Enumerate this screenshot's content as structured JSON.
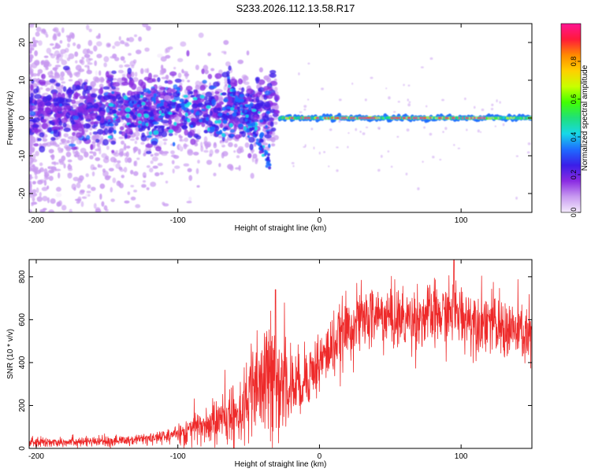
{
  "title": "S233.2026.112.13.58.R17",
  "colors": {
    "snr_line": "#ee2a2a",
    "axis": "#000000",
    "colorbar_stops": [
      "#f4eafc",
      "#c89af0",
      "#8a2be2",
      "#3a1ee8",
      "#1e6bff",
      "#17d8e8",
      "#1fe07a",
      "#42ff00",
      "#c8ff00",
      "#ffd000",
      "#ff8a00",
      "#ff1a3a",
      "#ff1493"
    ]
  },
  "chart_data": [
    {
      "type": "heatmap",
      "name": "spectrogram",
      "xlabel": "Height of straight line (km)",
      "ylabel": "Frequency (Hz)",
      "xlim": [
        -205,
        150
      ],
      "ylim": [
        -25,
        25
      ],
      "xticks": [
        -200,
        -100,
        0,
        100
      ],
      "xtick_labels": [
        "-200",
        "-100",
        "0",
        "100"
      ],
      "yticks": [
        -20,
        -10,
        0,
        10,
        20
      ],
      "ytick_labels": [
        "-20",
        "-10",
        "0",
        "10",
        "20"
      ],
      "colorbar": {
        "label": "Normalized spectral amplitude",
        "range": [
          0,
          1
        ],
        "ticks": [
          0.0,
          0.2,
          0.4,
          0.6,
          0.8
        ],
        "tick_labels": [
          "0.0",
          "0.2",
          "0.4",
          "0.6",
          "0.8"
        ]
      },
      "description_regions": [
        {
          "x_range": [
            -205,
            -35
          ],
          "freq_spread": 10,
          "intensity": 0.25
        },
        {
          "x_range": [
            -150,
            -35
          ],
          "freq_spread": 5,
          "intensity": 0.45
        },
        {
          "x_range": [
            -25,
            150
          ],
          "freq_center": 0,
          "freq_spread": 1,
          "intensity": 0.95
        }
      ]
    },
    {
      "type": "line",
      "name": "snr",
      "xlabel": "Height of straight line (km)",
      "ylabel": "SNR (10 * v/v)",
      "xlim": [
        -205,
        150
      ],
      "ylim": [
        0,
        880
      ],
      "xticks": [
        -200,
        -100,
        0,
        100
      ],
      "xtick_labels": [
        "-200",
        "-100",
        "0",
        "100"
      ],
      "yticks": [
        0,
        200,
        400,
        600,
        800
      ],
      "ytick_labels": [
        "0",
        "200",
        "400",
        "600",
        "800"
      ],
      "series": [
        {
          "name": "SNR",
          "x": [
            -205,
            -190,
            -175,
            -160,
            -145,
            -130,
            -115,
            -100,
            -90,
            -80,
            -70,
            -60,
            -50,
            -45,
            -40,
            -35,
            -30,
            -25,
            -20,
            -15,
            -10,
            -5,
            0,
            5,
            10,
            15,
            20,
            25,
            30,
            40,
            50,
            60,
            70,
            80,
            90,
            95,
            100,
            110,
            120,
            125,
            130,
            140,
            150
          ],
          "y": [
            25,
            30,
            35,
            30,
            35,
            40,
            50,
            70,
            90,
            110,
            130,
            160,
            220,
            260,
            300,
            340,
            320,
            330,
            300,
            290,
            340,
            360,
            400,
            440,
            480,
            520,
            560,
            580,
            600,
            620,
            610,
            600,
            610,
            620,
            620,
            650,
            620,
            600,
            600,
            560,
            560,
            540,
            520
          ]
        }
      ],
      "annotations": [
        {
          "x": -31,
          "y": 740
        },
        {
          "x": 95,
          "y": 880
        }
      ]
    }
  ]
}
